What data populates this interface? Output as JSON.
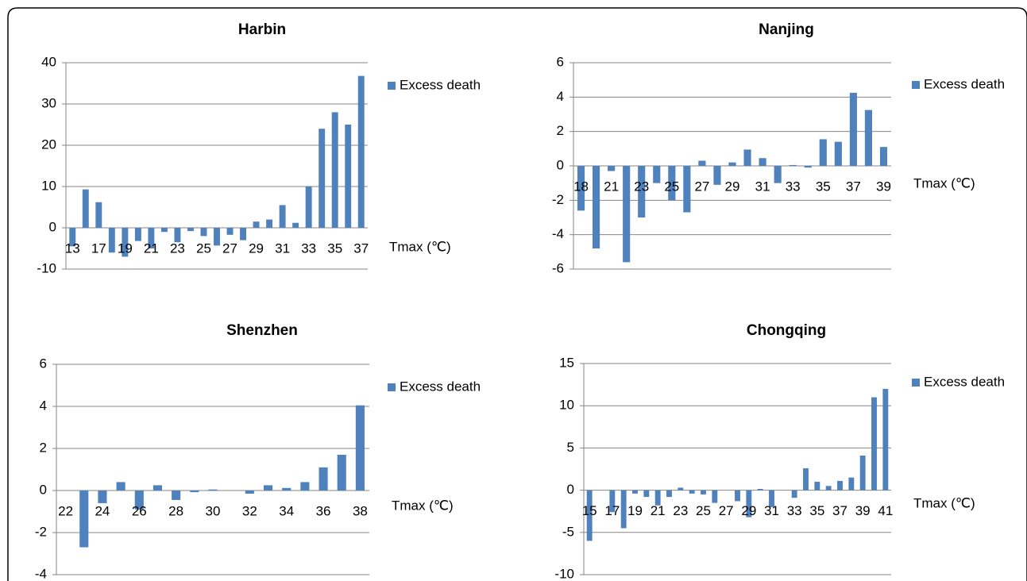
{
  "chart_data": [
    {
      "type": "bar",
      "title": "Harbin",
      "x_label": "Tmax (℃)",
      "categories": [
        "13",
        null,
        "17",
        null,
        "19",
        null,
        "21",
        null,
        "23",
        null,
        "25",
        null,
        "27",
        null,
        "29",
        null,
        "31",
        null,
        "33",
        null,
        "35",
        null,
        "37"
      ],
      "series": [
        {
          "name": "Excess death",
          "color": "#4f81bd",
          "values": [
            -4.5,
            9.3,
            6.2,
            -6,
            -7,
            -3.2,
            -5,
            -1,
            -3.5,
            -0.8,
            -2,
            -4.3,
            -1.7,
            -3,
            1.5,
            2,
            5.5,
            1.2,
            10,
            24,
            28,
            25,
            36.8
          ]
        }
      ],
      "ylim": [
        -10,
        40
      ],
      "yticks": [
        -10,
        0,
        10,
        20,
        30,
        40
      ],
      "grid": true
    },
    {
      "type": "bar",
      "title": "Nanjing",
      "x_label": "Tmax (℃)",
      "categories": [
        "18",
        null,
        "21",
        null,
        "23",
        null,
        "25",
        null,
        "27",
        null,
        "29",
        null,
        "31",
        null,
        "33",
        null,
        "35",
        null,
        "37",
        null,
        "39"
      ],
      "series": [
        {
          "name": "Excess death",
          "color": "#4f81bd",
          "values": [
            -2.6,
            -4.8,
            -0.3,
            -5.6,
            -3,
            -1,
            -2,
            -2.7,
            0.3,
            -1.1,
            0.2,
            0.95,
            0.45,
            -1,
            0.05,
            -0.1,
            1.55,
            1.4,
            4.25,
            3.25,
            1.1
          ]
        }
      ],
      "ylim": [
        -6,
        6
      ],
      "yticks": [
        -6,
        -4,
        -2,
        0,
        2,
        4,
        6
      ],
      "grid": true
    },
    {
      "type": "bar",
      "title": "Shenzhen",
      "x_label": "Tmax (℃)",
      "categories": [
        "22",
        null,
        "24",
        null,
        "26",
        null,
        "28",
        null,
        "30",
        null,
        "32",
        null,
        "34",
        null,
        "36",
        null,
        "38"
      ],
      "series": [
        {
          "name": "Excess death",
          "color": "#4f81bd",
          "values": [
            0,
            -2.7,
            -0.6,
            0.4,
            -0.9,
            0.25,
            -0.45,
            -0.08,
            0.05,
            0,
            -0.15,
            0.25,
            0.12,
            0.4,
            1.1,
            1.7,
            4.05
          ]
        }
      ],
      "ylim": [
        -4,
        6
      ],
      "yticks": [
        -4,
        -2,
        0,
        2,
        4,
        6
      ],
      "grid": true
    },
    {
      "type": "bar",
      "title": "Chongqing",
      "x_label": "Tmax (℃)",
      "categories": [
        "15",
        null,
        "17",
        null,
        "19",
        null,
        "21",
        null,
        "23",
        null,
        "25",
        null,
        "27",
        null,
        "29",
        null,
        "31",
        null,
        "33",
        null,
        "35",
        null,
        "37",
        null,
        "39",
        null,
        "41"
      ],
      "series": [
        {
          "name": "Excess death",
          "color": "#4f81bd",
          "values": [
            -6,
            0,
            -2.6,
            -4.5,
            -0.4,
            -0.8,
            -1.8,
            -0.8,
            0.3,
            -0.4,
            -0.5,
            -1.5,
            0,
            -1.3,
            -3.2,
            0.15,
            -2,
            0,
            -0.9,
            2.6,
            1,
            0.5,
            1.1,
            1.5,
            4.1,
            11,
            12
          ]
        }
      ],
      "ylim": [
        -10,
        15
      ],
      "yticks": [
        -10,
        -5,
        0,
        5,
        10,
        15
      ],
      "grid": true
    }
  ]
}
